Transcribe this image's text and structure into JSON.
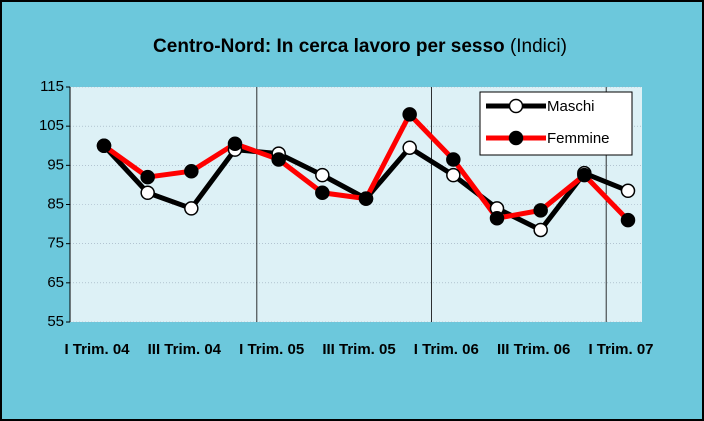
{
  "chart_data": {
    "type": "line",
    "title": "Centro-Nord: In cerca lavoro per sesso",
    "subtitle": "(Indici)",
    "categories": [
      "I Trim. 04",
      null,
      "III Trim. 04",
      null,
      "I Trim. 05",
      null,
      "III Trim. 05",
      null,
      "I Trim. 06",
      null,
      "III Trim. 06",
      null,
      "I Trim. 07"
    ],
    "series": [
      {
        "name": "Maschi",
        "color": "#000000",
        "marker_fill": "#ffffff",
        "values": [
          100,
          88,
          84,
          99,
          98,
          92.5,
          86.5,
          99.5,
          92.5,
          84,
          78.5,
          93,
          88.5
        ]
      },
      {
        "name": "Femmine",
        "color": "#ff0000",
        "marker_fill": "#000000",
        "values": [
          100,
          92,
          93.5,
          100.5,
          96.5,
          88,
          86.5,
          108,
          96.5,
          81.5,
          83.5,
          92.5,
          81
        ]
      }
    ],
    "ylim": [
      55,
      115
    ],
    "yticks": [
      55,
      65,
      75,
      85,
      95,
      105,
      115
    ],
    "grid": true,
    "legend": "upper right"
  }
}
